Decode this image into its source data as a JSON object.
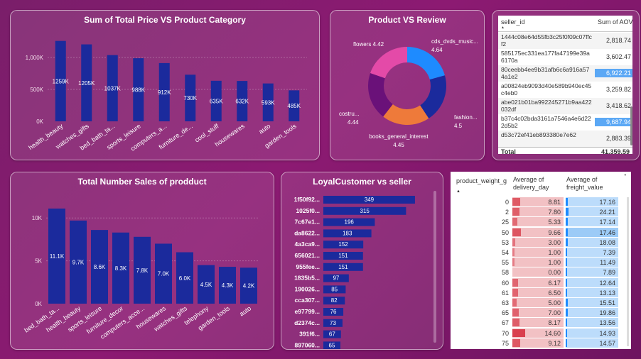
{
  "colors": {
    "bar": "#1b2a9c",
    "donut": [
      "#1e8bff",
      "#1b2a9c",
      "#ee7a3a",
      "#6a1179",
      "#e44aa8"
    ],
    "heat_light": "#f2c1c4",
    "heat_dark": "#d9404e",
    "blue_bar": "#bcdcfb",
    "blue_mark": "#1e8bff",
    "sel_row": "#5ba8f5"
  },
  "chart1": {
    "title": "Sum of Total Price VS Product Category",
    "chart_data": {
      "type": "bar",
      "title": "Sum of Total Price VS Product Category",
      "categories": [
        "health_beauty",
        "watches_gifts",
        "bed_bath_ta...",
        "sports_leisure",
        "computers_a...",
        "furniture_de...",
        "cool_stuff",
        "housewares",
        "auto",
        "garden_tools"
      ],
      "values": [
        1259,
        1205,
        1037,
        988,
        912,
        730,
        635,
        632,
        593,
        485
      ],
      "labels": [
        "1259K",
        "1205K",
        "1037K",
        "988K",
        "912K",
        "730K",
        "635K",
        "632K",
        "593K",
        "485K"
      ],
      "yticks": [
        "0K",
        "500K",
        "1,000K"
      ],
      "ytick_values": [
        0,
        500,
        1000
      ],
      "ylim": [
        0,
        1400
      ]
    }
  },
  "chart2": {
    "title": "Product VS Review",
    "chart_data": {
      "type": "pie",
      "title": "Product VS Review",
      "slices": [
        {
          "label": "cds_dvds_music...",
          "value": 4.64
        },
        {
          "label": "fashion...",
          "value": 4.5
        },
        {
          "label": "books_general_interest",
          "value": 4.45
        },
        {
          "label": "costru...",
          "value": 4.44
        },
        {
          "label": "flowers",
          "value": 4.42
        }
      ],
      "value_labels": [
        "4.64",
        "4.5",
        "4.45",
        "4.44",
        "4.42"
      ]
    }
  },
  "table1": {
    "headers": [
      "seller_id",
      "Sum of AOV"
    ],
    "rows": [
      [
        "1444c08e64d55fb3c25f0f09c07ffcf2",
        "2,818.74"
      ],
      [
        "585175ec331ea177fa47199e39a6170a",
        "3,602.47"
      ],
      [
        "80ceebb4ee9b31afb6c6a916a574a1e2",
        "6,922.21"
      ],
      [
        "a00824eb9093d40e589b940ec45c4eb0",
        "3,259.82"
      ],
      [
        "abe021b01ba992245271b9aa422032df",
        "3,418.62"
      ],
      [
        "b37c4c02bda3161a7546a4e6d222d5b2",
        "9,687.94"
      ],
      [
        "d53c72ef41eb893380e7e62",
        "2,883.39"
      ]
    ],
    "total_label": "Total",
    "total_value": "41,359.59"
  },
  "chart3": {
    "title": "Total Number Sales of prodduct",
    "chart_data": {
      "type": "bar",
      "title": "Total Number Sales of prodduct",
      "categories": [
        "bed_bath_ta...",
        "health_beauty",
        "sports_leisure",
        "furniture_decor",
        "computers_acce...",
        "housewares",
        "watches_gifts",
        "telephony",
        "garden_tools",
        "auto"
      ],
      "values": [
        11.1,
        9.7,
        8.6,
        8.3,
        7.8,
        7.0,
        6.0,
        4.5,
        4.3,
        4.2
      ],
      "labels": [
        "11.1K",
        "9.7K",
        "8.6K",
        "8.3K",
        "7.8K",
        "7.0K",
        "6.0K",
        "4.5K",
        "4.3K",
        "4.2K"
      ],
      "yticks": [
        "0K",
        "5K",
        "10K"
      ],
      "ytick_values": [
        0,
        5,
        10
      ],
      "ylim": [
        0,
        13
      ]
    }
  },
  "chart4": {
    "title": "LoyalCustomer vs seller",
    "chart_data": {
      "type": "bar",
      "orientation": "horizontal",
      "title": "LoyalCustomer vs seller",
      "categories": [
        "1f50f92...",
        "1025f0...",
        "7c67e1...",
        "da8622...",
        "4a3ca9...",
        "656021...",
        "955fee...",
        "1835b5...",
        "190026...",
        "cca307...",
        "e97799...",
        "d2374c...",
        "391f6...",
        "897060..."
      ],
      "values": [
        349,
        315,
        196,
        183,
        152,
        151,
        151,
        97,
        85,
        82,
        76,
        73,
        67,
        65
      ],
      "xlim": [
        0,
        360
      ]
    }
  },
  "table2": {
    "headers": [
      "product_weight_g",
      "Average of delivery_day",
      "Average of freight_value"
    ],
    "rows": [
      [
        "0",
        "8.81",
        "17.16"
      ],
      [
        "2",
        "7.80",
        "24.21"
      ],
      [
        "25",
        "5.33",
        "17.14"
      ],
      [
        "50",
        "9.66",
        "17.46"
      ],
      [
        "53",
        "3.00",
        "18.08"
      ],
      [
        "54",
        "1.00",
        "7.39"
      ],
      [
        "55",
        "1.00",
        "11.49"
      ],
      [
        "58",
        "0.00",
        "7.89"
      ],
      [
        "60",
        "6.17",
        "12.64"
      ],
      [
        "61",
        "6.50",
        "13.13"
      ],
      [
        "63",
        "5.00",
        "15.51"
      ],
      [
        "65",
        "7.00",
        "19.86"
      ],
      [
        "67",
        "8.17",
        "13.56"
      ],
      [
        "70",
        "14.60",
        "14.93"
      ],
      [
        "75",
        "9.12",
        "14.57"
      ]
    ],
    "delivery_max": 14.6,
    "freight_max": 24.21
  }
}
